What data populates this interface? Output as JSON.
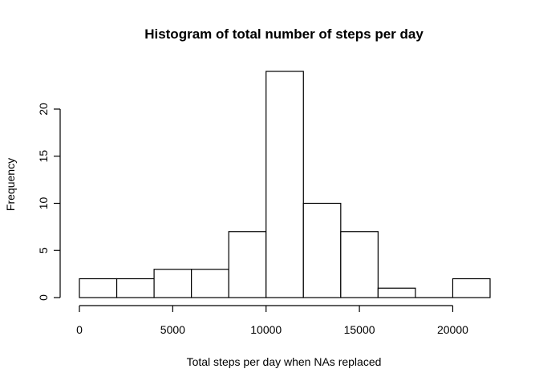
{
  "chart_data": {
    "type": "bar",
    "subtype": "histogram",
    "title": "Histogram of total number of steps per day",
    "xlabel": "Total steps per day when NAs replaced",
    "ylabel": "Frequency",
    "bins": [
      {
        "start": 0,
        "end": 2000,
        "count": 2
      },
      {
        "start": 2000,
        "end": 4000,
        "count": 2
      },
      {
        "start": 4000,
        "end": 6000,
        "count": 3
      },
      {
        "start": 6000,
        "end": 8000,
        "count": 3
      },
      {
        "start": 8000,
        "end": 10000,
        "count": 7
      },
      {
        "start": 10000,
        "end": 12000,
        "count": 24
      },
      {
        "start": 12000,
        "end": 14000,
        "count": 10
      },
      {
        "start": 14000,
        "end": 16000,
        "count": 7
      },
      {
        "start": 16000,
        "end": 18000,
        "count": 1
      },
      {
        "start": 18000,
        "end": 20000,
        "count": 0
      },
      {
        "start": 20000,
        "end": 22000,
        "count": 2
      }
    ],
    "xticks": [
      0,
      5000,
      10000,
      15000,
      20000
    ],
    "yticks": [
      0,
      5,
      10,
      15,
      20
    ],
    "xlim": [
      0,
      22000
    ],
    "ylim": [
      0,
      24
    ],
    "grid": false,
    "colors": {
      "bar_fill": "#ffffff",
      "bar_stroke": "#000000"
    }
  }
}
